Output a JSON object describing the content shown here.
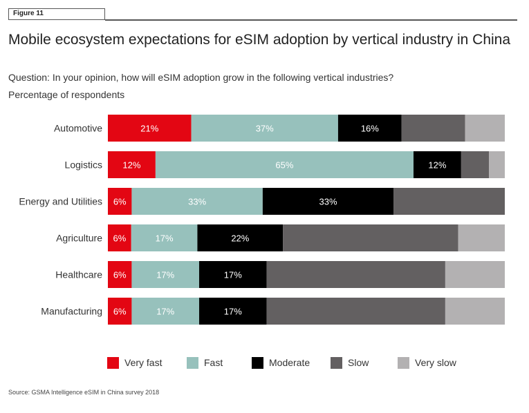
{
  "header": {
    "figure_label": "Figure 11",
    "title": "Mobile ecosystem expectations for eSIM adoption by vertical industry in China",
    "subtitle": "Question: In your opinion, how will eSIM adoption grow in the following vertical industries?",
    "units": "Percentage of respondents"
  },
  "legend": {
    "items": [
      {
        "label": "Very fast",
        "color": "#e30613"
      },
      {
        "label": "Fast",
        "color": "#97c1bc"
      },
      {
        "label": "Moderate",
        "color": "#000000"
      },
      {
        "label": "Slow",
        "color": "#636061"
      },
      {
        "label": "Very slow",
        "color": "#b3b1b2"
      }
    ]
  },
  "footer": {
    "source": "Source: GSMA Intelligence eSIM in China survey 2018"
  },
  "chart_data": {
    "type": "bar",
    "orientation": "horizontal",
    "stacked": true,
    "percent_stacked": true,
    "categories": [
      "Automotive",
      "Logistics",
      "Energy and Utilities",
      "Agriculture",
      "Healthcare",
      "Manufacturing"
    ],
    "series": [
      {
        "name": "Very fast",
        "color": "#e30613",
        "values": [
          21,
          12,
          6,
          6,
          6,
          6
        ],
        "labels": [
          "21%",
          "12%",
          "6%",
          "6%",
          "6%",
          "6%"
        ]
      },
      {
        "name": "Fast",
        "color": "#97c1bc",
        "values": [
          37,
          65,
          33,
          17,
          17,
          17
        ],
        "labels": [
          "37%",
          "65%",
          "33%",
          "17%",
          "17%",
          "17%"
        ]
      },
      {
        "name": "Moderate",
        "color": "#000000",
        "values": [
          16,
          12,
          33,
          22,
          17,
          17
        ],
        "labels": [
          "16%",
          "12%",
          "33%",
          "22%",
          "17%",
          "17%"
        ]
      },
      {
        "name": "Slow",
        "color": "#636061",
        "values": [
          16,
          7,
          28,
          45,
          45,
          45
        ],
        "labels": [
          "",
          "",
          "",
          "",
          "",
          ""
        ]
      },
      {
        "name": "Very slow",
        "color": "#b3b1b2",
        "values": [
          10,
          4,
          0,
          12,
          15,
          15
        ],
        "labels": [
          "",
          "",
          "",
          "",
          "",
          ""
        ]
      }
    ],
    "xlim": [
      0,
      100
    ],
    "grid": false,
    "legend_position": "bottom"
  }
}
